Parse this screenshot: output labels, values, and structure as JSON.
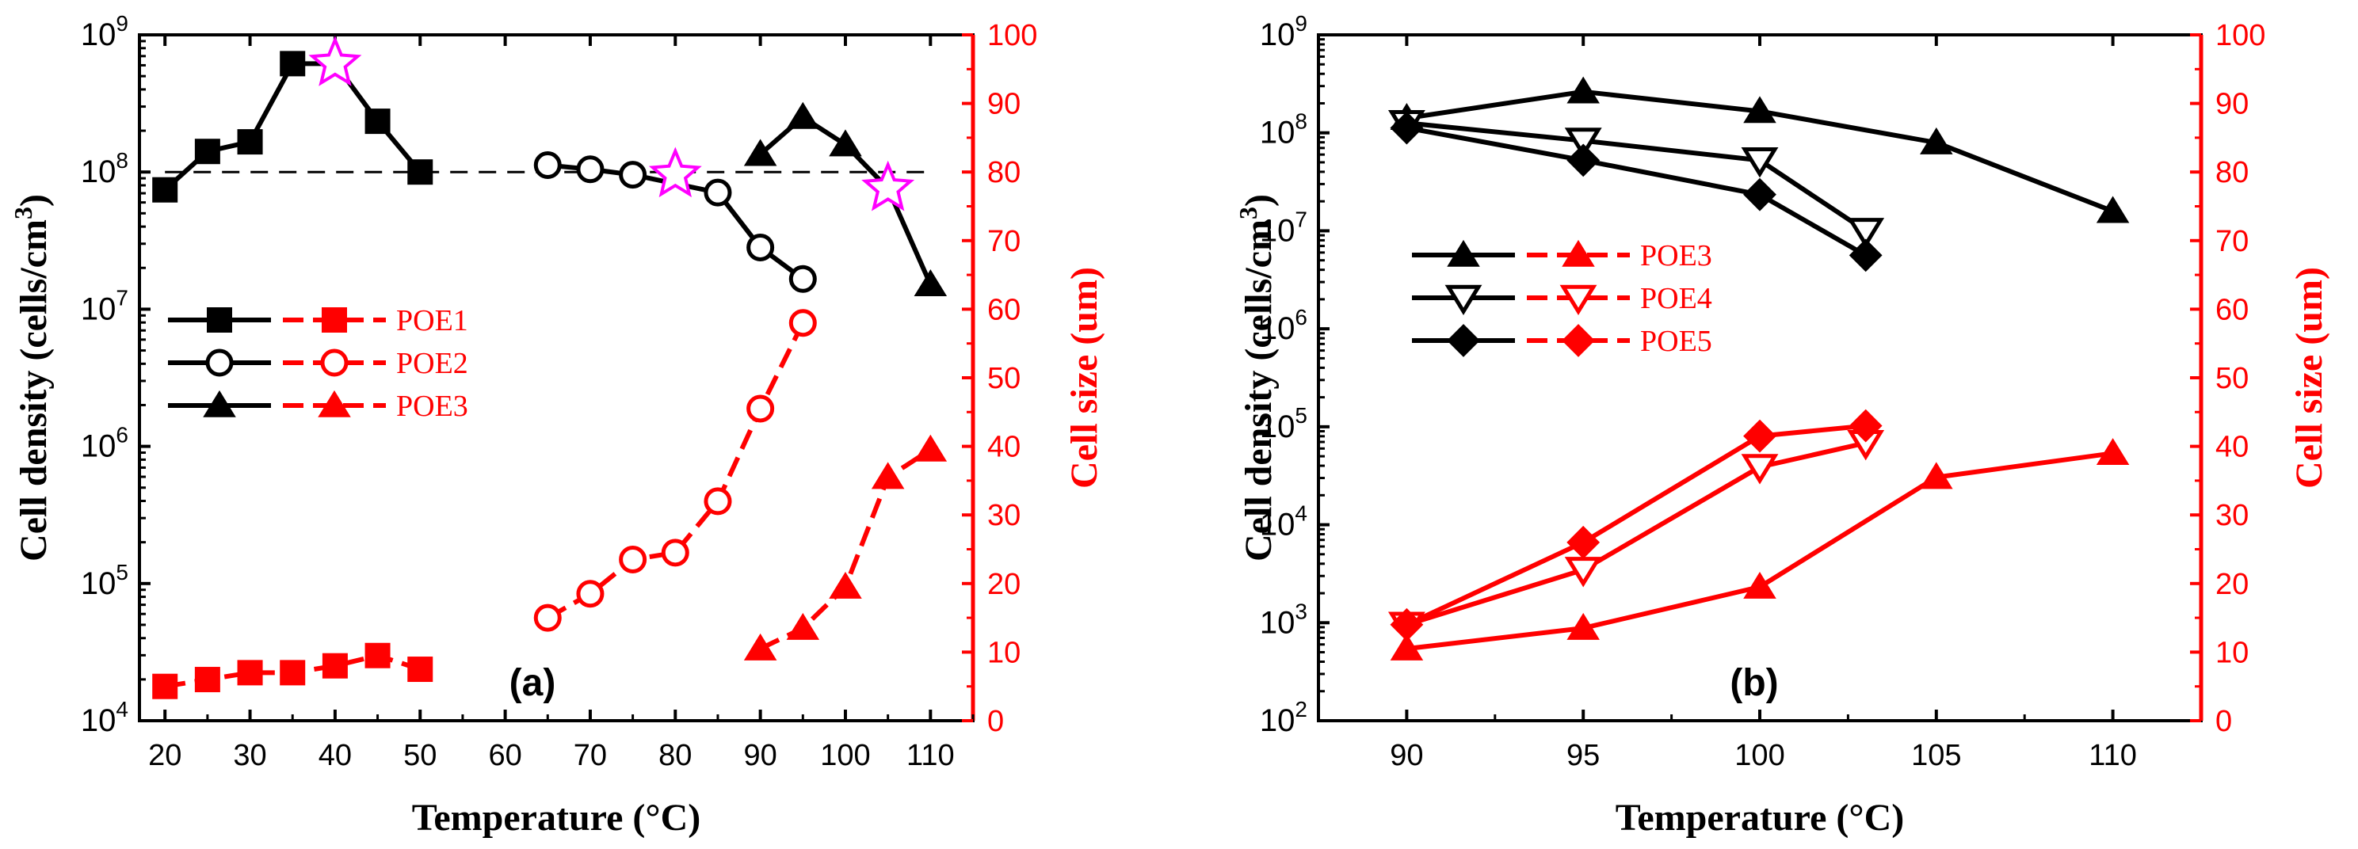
{
  "colors": {
    "density": "#000000",
    "size": "#ff0000",
    "star": "#ff00ff"
  },
  "chart_data": [
    {
      "type": "line",
      "panel_label": "(a)",
      "xlabel": "Temperature (°C)",
      "ylabel_left": "Cell density (cells/cm",
      "ylabel_left_sup": "3",
      "ylabel_left_end": ")",
      "ylabel_right": "Cell size (um)",
      "xlim": [
        17,
        115
      ],
      "ylim_left_log10": [
        4,
        9
      ],
      "ylim_right": [
        0,
        100
      ],
      "xticks": [
        20,
        30,
        40,
        50,
        60,
        70,
        80,
        90,
        100,
        110
      ],
      "xtick_labels": [
        "20",
        "30",
        "40",
        "50",
        "60",
        "70",
        "80",
        "90",
        "100",
        "110"
      ],
      "yticks_left": [
        {
          "base": "10",
          "exp": "4"
        },
        {
          "base": "10",
          "exp": "5"
        },
        {
          "base": "10",
          "exp": "6"
        },
        {
          "base": "10",
          "exp": "7"
        },
        {
          "base": "10",
          "exp": "8"
        },
        {
          "base": "10",
          "exp": "9"
        }
      ],
      "yticks_right": [
        "0",
        "10",
        "20",
        "30",
        "40",
        "50",
        "60",
        "70",
        "80",
        "90",
        "100"
      ],
      "reference_line": {
        "y_log10": 8,
        "x_range": [
          20,
          110
        ],
        "style": "dashed"
      },
      "legend": [
        {
          "name": "POE1",
          "marker": "square"
        },
        {
          "name": "POE2",
          "marker": "circle"
        },
        {
          "name": "POE3",
          "marker": "triangle"
        }
      ],
      "density_series": [
        {
          "name": "POE1",
          "marker": "square",
          "fill": true,
          "x": [
            20,
            25,
            30,
            35,
            45,
            50
          ],
          "y_log10": [
            7.87,
            8.15,
            8.22,
            8.79,
            8.37,
            8.0
          ]
        },
        {
          "name": "POE2",
          "marker": "circle",
          "fill": false,
          "x": [
            65,
            70,
            75,
            85,
            90,
            95
          ],
          "y_log10": [
            8.05,
            8.02,
            7.98,
            7.85,
            7.45,
            7.22
          ]
        },
        {
          "name": "POE3",
          "marker": "triangle",
          "fill": true,
          "x": [
            90,
            95,
            100,
            110
          ],
          "y_log10": [
            8.13,
            8.4,
            8.2,
            7.18
          ]
        }
      ],
      "density_connectors": [
        {
          "name": "POE1",
          "x": [
            35,
            40,
            45
          ],
          "y_log10": [
            8.79,
            8.79,
            8.37
          ]
        },
        {
          "name": "POE3",
          "x": [
            100,
            105,
            110
          ],
          "y_log10": [
            8.2,
            7.88,
            7.18
          ]
        }
      ],
      "size_series": [
        {
          "name": "POE1",
          "marker": "square",
          "fill": true,
          "x": [
            20,
            25,
            30,
            35,
            40,
            45,
            50
          ],
          "y": [
            5,
            6,
            7,
            7,
            8,
            9.5,
            7.5
          ]
        },
        {
          "name": "POE2",
          "marker": "circle",
          "fill": false,
          "x": [
            65,
            70,
            75,
            80,
            85,
            90,
            95
          ],
          "y": [
            15,
            18.5,
            23.5,
            24.5,
            32,
            45.5,
            58
          ]
        },
        {
          "name": "POE3",
          "marker": "triangle",
          "fill": true,
          "x": [
            90,
            95,
            100,
            105,
            110
          ],
          "y": [
            10.5,
            13.5,
            19.5,
            35.5,
            39.5
          ]
        }
      ],
      "stars": [
        {
          "x": 40,
          "y_log10": 8.79
        },
        {
          "x": 80,
          "y_log10": 7.98
        },
        {
          "x": 105,
          "y_log10": 7.88
        }
      ]
    },
    {
      "type": "line",
      "panel_label": "(b)",
      "xlabel": "Temperature (°C)",
      "ylabel_left": "Cell density (cells/cm",
      "ylabel_left_sup": "3",
      "ylabel_left_end": ")",
      "ylabel_right": "Cell size (um)",
      "xlim": [
        87.5,
        112.5
      ],
      "ylim_left_log10": [
        2,
        9
      ],
      "ylim_right": [
        0,
        100
      ],
      "xticks": [
        90,
        95,
        100,
        105,
        110
      ],
      "xtick_labels": [
        "90",
        "95",
        "100",
        "105",
        "110"
      ],
      "yticks_left": [
        {
          "base": "10",
          "exp": "2"
        },
        {
          "base": "10",
          "exp": "3"
        },
        {
          "base": "10",
          "exp": "4"
        },
        {
          "base": "10",
          "exp": "5"
        },
        {
          "base": "10",
          "exp": "6"
        },
        {
          "base": "10",
          "exp": "7"
        },
        {
          "base": "10",
          "exp": "8"
        },
        {
          "base": "10",
          "exp": "9"
        }
      ],
      "yticks_right": [
        "0",
        "10",
        "20",
        "30",
        "40",
        "50",
        "60",
        "70",
        "80",
        "90",
        "100"
      ],
      "legend": [
        {
          "name": "POE3",
          "marker": "triangle"
        },
        {
          "name": "POE4",
          "marker": "triangle-down"
        },
        {
          "name": "POE5",
          "marker": "diamond"
        }
      ],
      "density_series": [
        {
          "name": "POE3",
          "marker": "triangle",
          "fill": true,
          "x": [
            90,
            95,
            100,
            105,
            110
          ],
          "y_log10": [
            8.15,
            8.42,
            8.22,
            7.9,
            7.2
          ]
        },
        {
          "name": "POE4",
          "marker": "triangle-down",
          "fill": false,
          "x": [
            90,
            95,
            100,
            103
          ],
          "y_log10": [
            8.1,
            7.92,
            7.72,
            7.0
          ]
        },
        {
          "name": "POE5",
          "marker": "diamond",
          "fill": true,
          "x": [
            90,
            95,
            100,
            103
          ],
          "y_log10": [
            8.05,
            7.72,
            7.37,
            6.75
          ]
        }
      ],
      "size_series": [
        {
          "name": "POE3",
          "marker": "triangle",
          "fill": true,
          "x": [
            90,
            95,
            100,
            105,
            110
          ],
          "y": [
            10.5,
            13.5,
            19.5,
            35.5,
            39
          ]
        },
        {
          "name": "POE4",
          "marker": "triangle-down",
          "fill": false,
          "x": [
            90,
            95,
            100,
            103
          ],
          "y": [
            14,
            22,
            37,
            40.5
          ]
        },
        {
          "name": "POE5",
          "marker": "diamond",
          "fill": true,
          "x": [
            90,
            95,
            100,
            103
          ],
          "y": [
            14,
            26,
            41.5,
            43
          ]
        }
      ]
    }
  ]
}
